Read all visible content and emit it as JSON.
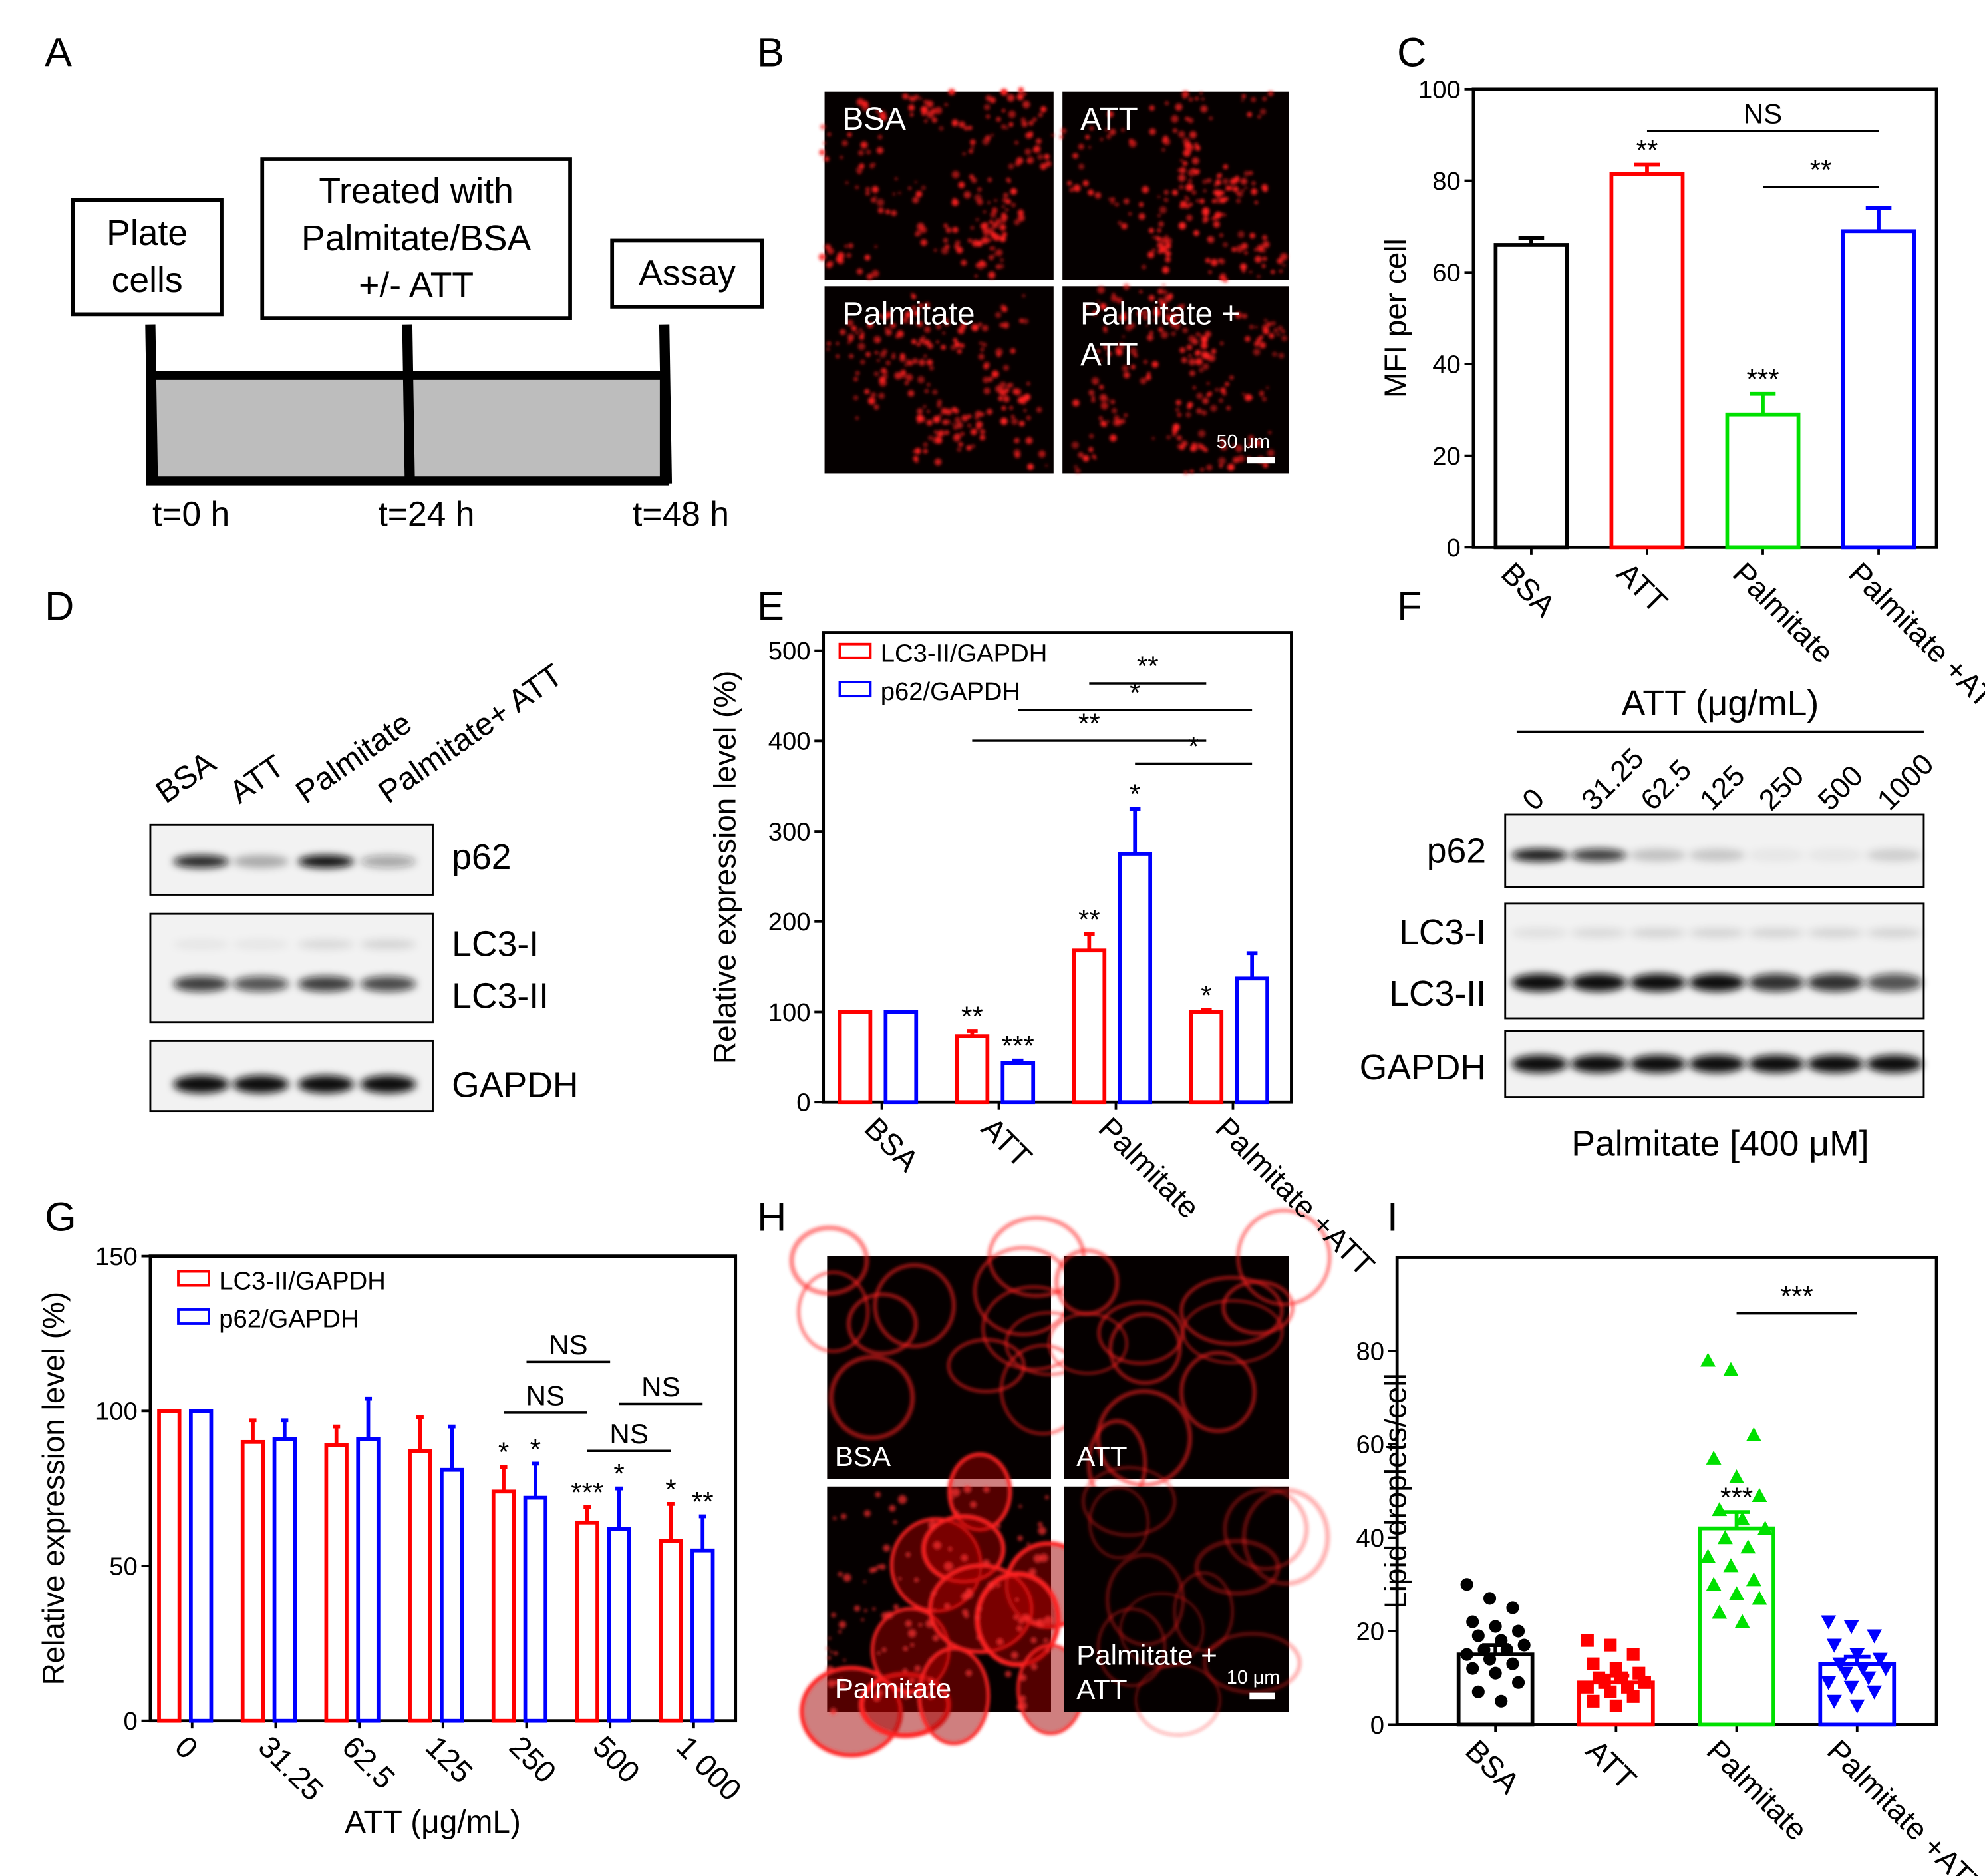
{
  "panel_labels": [
    "A",
    "B",
    "C",
    "D",
    "E",
    "F",
    "G",
    "H",
    "I"
  ],
  "timeline": {
    "steps": [
      [
        "Plate",
        "cells"
      ],
      [
        "Treated with",
        "Palmitate/BSA",
        "+/- ATT"
      ],
      [
        "Assay"
      ]
    ],
    "times": [
      "t=0 h",
      "t=24 h",
      "t=48 h"
    ]
  },
  "images_b": {
    "labels": [
      [
        "BSA"
      ],
      [
        "ATT"
      ],
      [
        "Palmitate"
      ],
      [
        "Palmitate +",
        "ATT"
      ]
    ],
    "scale_bar": "50 μm"
  },
  "blot_d": {
    "lanes": [
      "BSA",
      "ATT",
      "Palmitate",
      "Palmitate+ ATT"
    ],
    "rows": [
      "p62",
      "LC3-I",
      "LC3-II",
      "GAPDH"
    ]
  },
  "blot_f": {
    "header": "ATT (μg/mL)",
    "lanes": [
      "0",
      "31.25",
      "62.5",
      "125",
      "250",
      "500",
      "1000"
    ],
    "rows": [
      "p62",
      "LC3-I",
      "LC3-II",
      "GAPDH"
    ],
    "footer": "Palmitate [400 μM]"
  },
  "images_h": {
    "labels": [
      [
        "BSA"
      ],
      [
        "ATT"
      ],
      [
        "Palmitate"
      ],
      [
        "Palmitate +",
        "ATT"
      ]
    ],
    "scale_bar": "10 μm"
  },
  "chart_data": [
    {
      "type": "bar",
      "ylabel": "MFI per cell",
      "categories": [
        "BSA",
        "ATT",
        "Palmitate",
        "Palmitate +ATT"
      ],
      "values": [
        66,
        81.5,
        29,
        69
      ],
      "errors": [
        1.5,
        2,
        4.5,
        5
      ],
      "colors": [
        "#000000",
        "#ff0000",
        "#00e000",
        "#0000ff"
      ],
      "value_annotations": [
        null,
        "**",
        "***",
        null
      ],
      "comparisons": [
        {
          "between": [
            "ATT",
            "Palmitate +ATT"
          ],
          "label": "NS"
        },
        {
          "between": [
            "Palmitate",
            "Palmitate +ATT"
          ],
          "label": "**"
        }
      ],
      "ylim": [
        0,
        100
      ],
      "yticks": [
        0,
        20,
        40,
        60,
        80,
        100
      ]
    },
    {
      "type": "grouped_bar",
      "ylabel": "Relative expression level (%)",
      "categories": [
        "BSA",
        "ATT",
        "Palmitate",
        "Palmitate +ATT"
      ],
      "series": [
        {
          "name": "LC3-II/GAPDH",
          "color": "#ff0000",
          "values": [
            100,
            73,
            168,
            100
          ],
          "errors": [
            0,
            6,
            18,
            2
          ],
          "annotations": [
            null,
            "**",
            "**",
            "*"
          ]
        },
        {
          "name": "p62/GAPDH",
          "color": "#0000ff",
          "values": [
            100,
            43,
            275,
            137
          ],
          "errors": [
            0,
            3,
            50,
            28
          ],
          "annotations": [
            null,
            "***",
            "*",
            null
          ]
        }
      ],
      "comparisons": [
        {
          "between": [
            "Palmitate",
            "Palmitate +ATT"
          ],
          "series": "LC3-II/GAPDH",
          "label": "**"
        },
        {
          "between": [
            "ATT",
            "Palmitate +ATT"
          ],
          "series": "p62/GAPDH",
          "label": "*"
        },
        {
          "between": [
            "ATT",
            "Palmitate +ATT"
          ],
          "series": "LC3-II/GAPDH",
          "label": "**"
        },
        {
          "between": [
            "Palmitate",
            "Palmitate +ATT"
          ],
          "series": "p62/GAPDH",
          "label": "*"
        }
      ],
      "ylim": [
        0,
        520
      ],
      "yticks": [
        0,
        100,
        200,
        300,
        400,
        500
      ]
    },
    {
      "type": "grouped_bar",
      "ylabel": "Relative expression level (%)",
      "xlabel": "ATT (μg/mL)",
      "categories": [
        "0",
        "31.25",
        "62.5",
        "125",
        "250",
        "500",
        "1 000"
      ],
      "series": [
        {
          "name": "LC3-II/GAPDH",
          "color": "#ff0000",
          "values": [
            100,
            90,
            89,
            87,
            74,
            64,
            58
          ],
          "errors": [
            0,
            7,
            6,
            11,
            8,
            5,
            12
          ],
          "annotations": [
            null,
            null,
            null,
            null,
            "*",
            "***",
            "*"
          ]
        },
        {
          "name": "p62/GAPDH",
          "color": "#0000ff",
          "values": [
            100,
            91,
            91,
            81,
            72,
            62,
            55
          ],
          "errors": [
            0,
            6,
            13,
            14,
            11,
            13,
            11
          ],
          "annotations": [
            null,
            null,
            null,
            null,
            "*",
            "*",
            "**"
          ]
        }
      ],
      "comparisons": [
        {
          "between": [
            "250",
            "500"
          ],
          "label": "NS"
        },
        {
          "between": [
            "250",
            "500"
          ],
          "series": "LC3-II/GAPDH",
          "label": "NS"
        },
        {
          "between": [
            "500",
            "1 000"
          ],
          "series": "p62/GAPDH",
          "label": "NS"
        },
        {
          "between": [
            "500",
            "1 000"
          ],
          "series": "LC3-II/GAPDH",
          "label": "NS"
        }
      ],
      "ylim": [
        0,
        150
      ],
      "yticks": [
        0,
        50,
        100,
        150
      ]
    },
    {
      "type": "bar_scatter",
      "ylabel": "Lipid droplets/cell",
      "categories": [
        "BSA",
        "ATT",
        "Palmitate",
        "Palmitate +ATT"
      ],
      "values": [
        15,
        9,
        42,
        13
      ],
      "errors": [
        2,
        1.5,
        3.5,
        1.5
      ],
      "colors": [
        "#000000",
        "#ff0000",
        "#00e000",
        "#0000ff"
      ],
      "markers": [
        "circle",
        "square",
        "triangle-up",
        "triangle-down"
      ],
      "points": [
        [
          30,
          27,
          25,
          22,
          21,
          20,
          19,
          18,
          17,
          16,
          16,
          15,
          14,
          13,
          12,
          11,
          9,
          7,
          5
        ],
        [
          18,
          17,
          15,
          13,
          12,
          11,
          10,
          10,
          9,
          9,
          8,
          8,
          7,
          6,
          5,
          4
        ],
        [
          78,
          76,
          62,
          57,
          53,
          49,
          46,
          44,
          42,
          40,
          38,
          36,
          34,
          31,
          30,
          28,
          27,
          24,
          22
        ],
        [
          22,
          21,
          19,
          17,
          15,
          14,
          13,
          12,
          12,
          11,
          10,
          9,
          8,
          7,
          5,
          4
        ]
      ],
      "value_annotations": [
        null,
        null,
        "***",
        null
      ],
      "comparisons": [
        {
          "between": [
            "Palmitate",
            "Palmitate +ATT"
          ],
          "label": "***"
        }
      ],
      "ylim": [
        0,
        100
      ],
      "yticks": [
        0,
        20,
        40,
        60,
        80
      ]
    }
  ]
}
